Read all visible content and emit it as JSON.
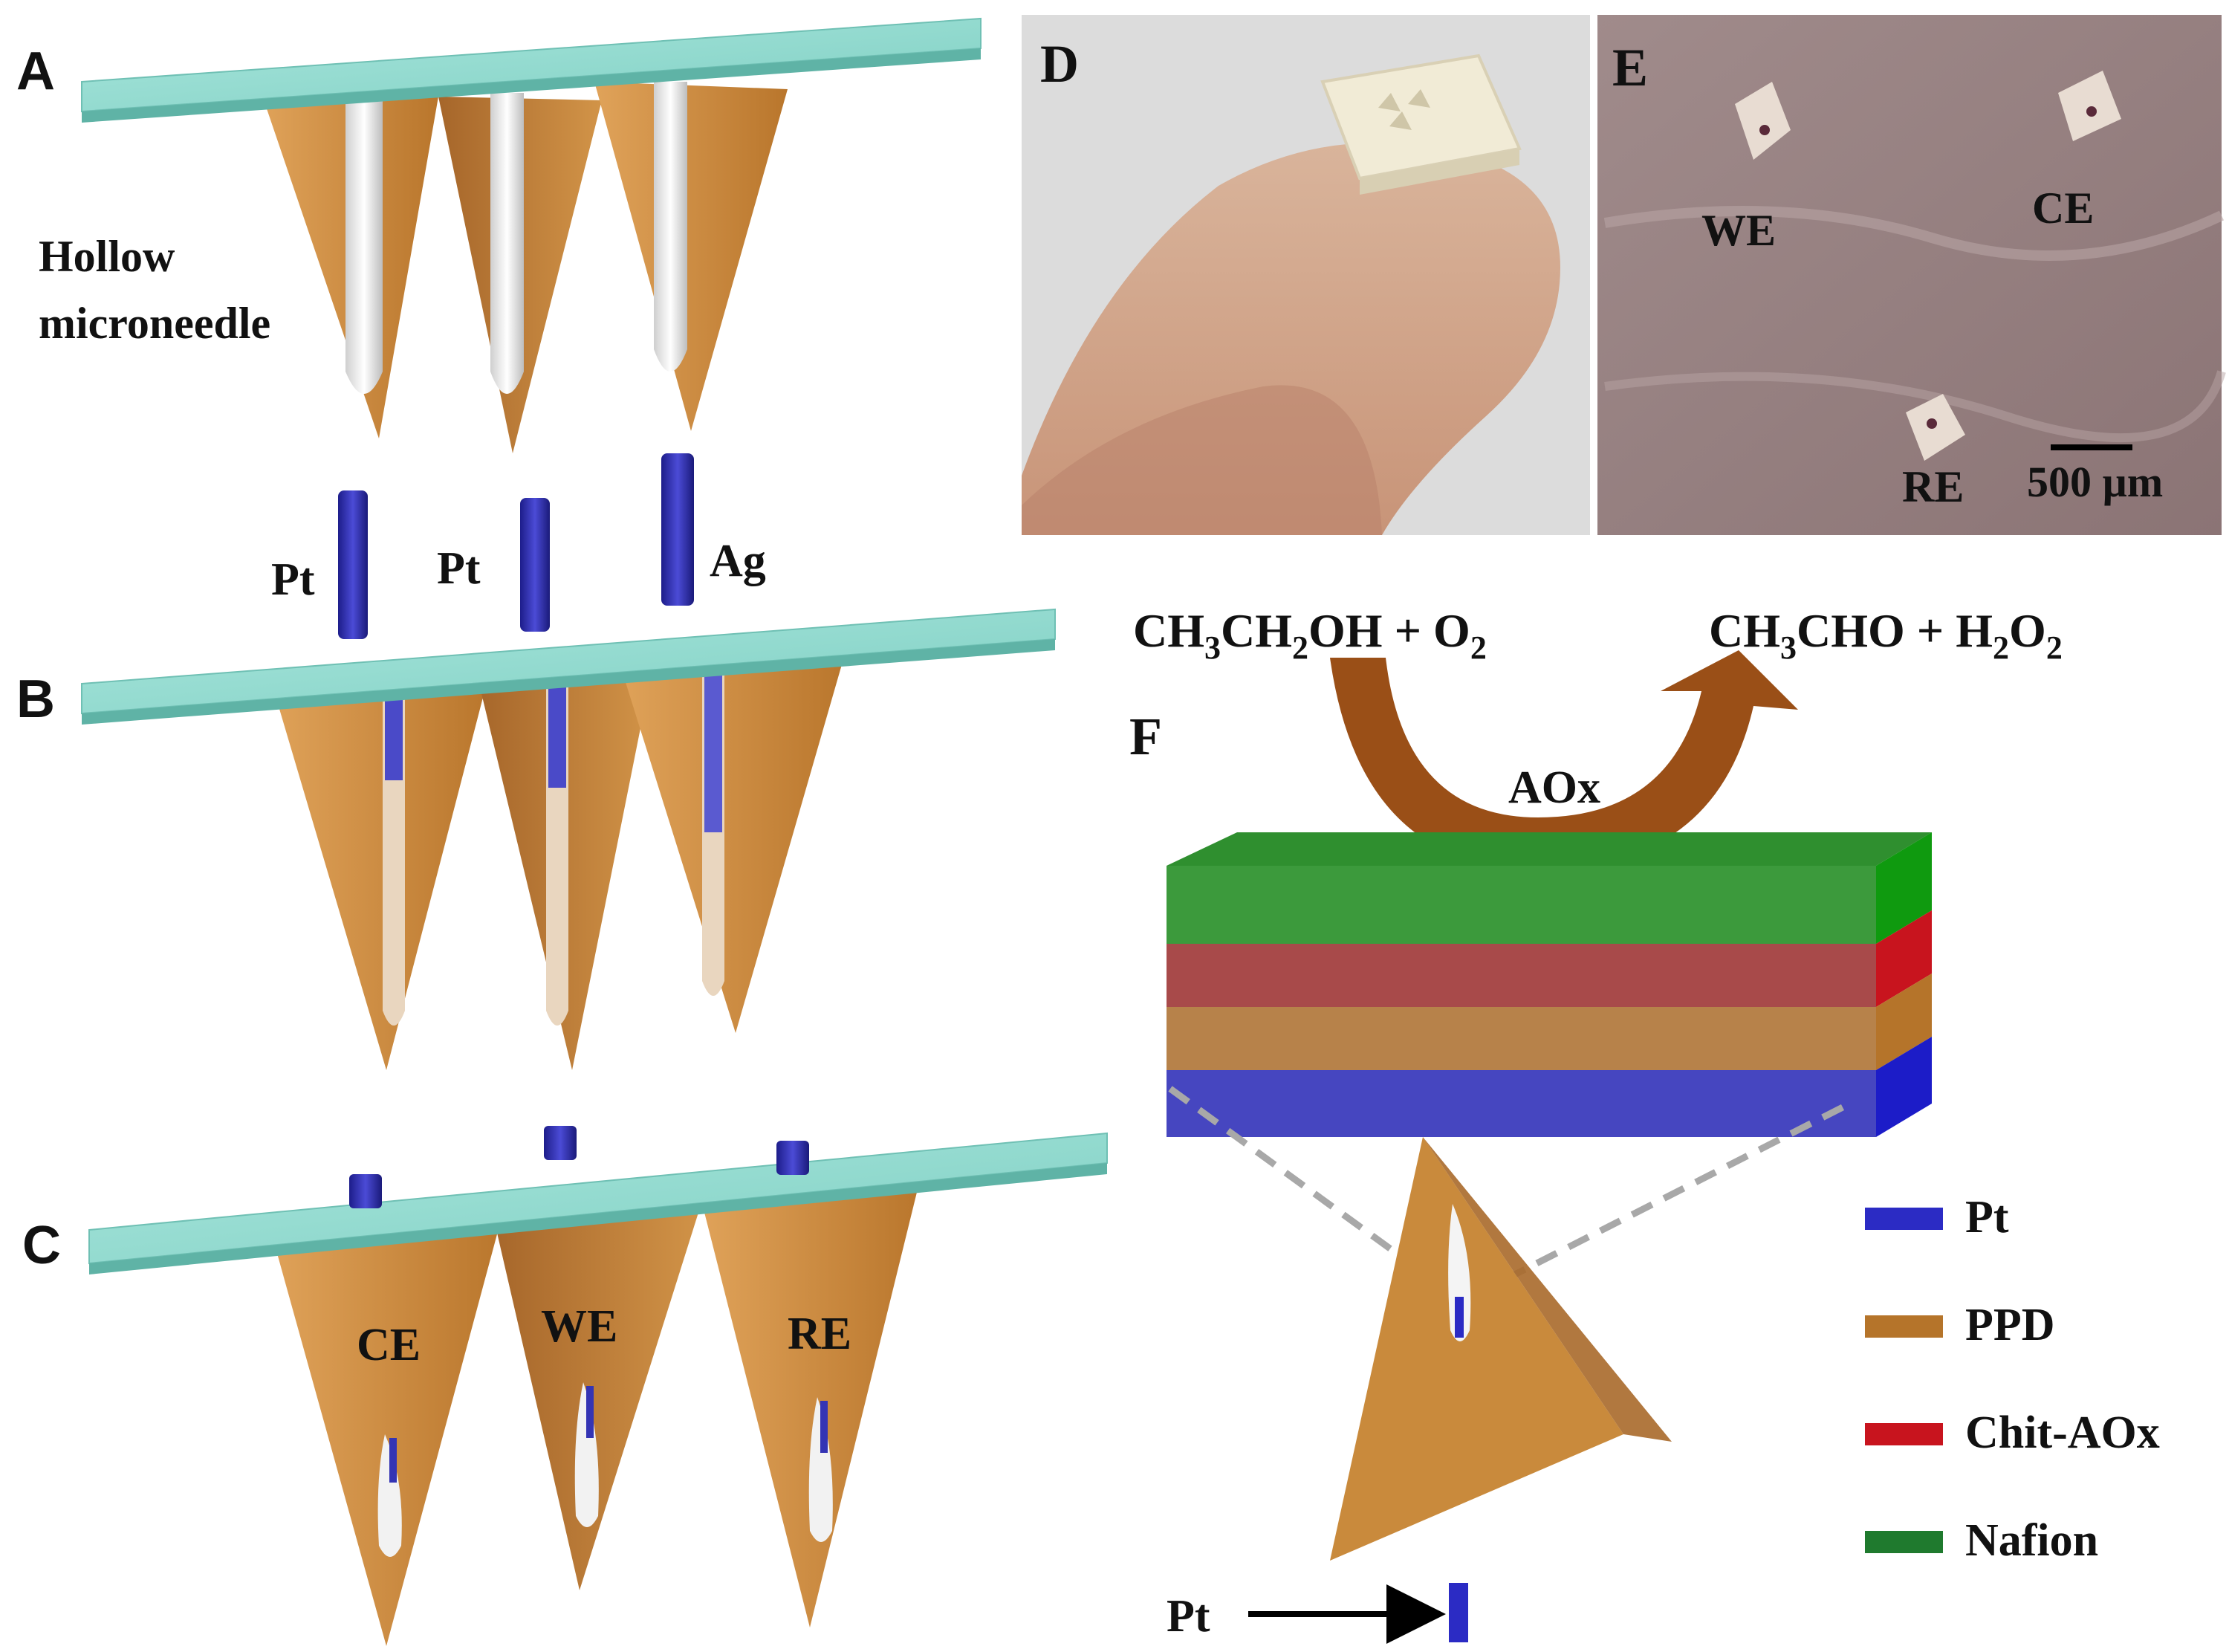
{
  "panels": {
    "A": {
      "letter": "A",
      "label_line1": "Hollow",
      "label_line2": "microneedle"
    },
    "B": {
      "letter": "B",
      "wires": [
        "Pt",
        "Pt",
        "Ag"
      ]
    },
    "C": {
      "letter": "C",
      "electrodes": [
        "CE",
        "WE",
        "RE"
      ]
    },
    "D": {
      "letter": "D"
    },
    "E": {
      "letter": "E",
      "we": "WE",
      "ce": "CE",
      "re": "RE",
      "scale_bar": "500 µm"
    },
    "F": {
      "letter": "F",
      "enzyme": "AOx",
      "pt_pointer": "Pt"
    }
  },
  "reaction": {
    "reactants": [
      "CH3CH2OH",
      "O2"
    ],
    "products": [
      "CH3CHO",
      "H2O2"
    ]
  },
  "legend": [
    {
      "label": "Pt",
      "color": "#2b2bc4"
    },
    {
      "label": "PPD",
      "color": "#b5742a"
    },
    {
      "label": "Chit-AOx",
      "color": "#c8141e"
    },
    {
      "label": "Nafion",
      "color": "#1f7a2e"
    }
  ],
  "colors": {
    "plate": "#8fd8cf",
    "needle": "#c98a3c",
    "layer_nafion": "#3c9a3c",
    "layer_chit": "#a84a4a",
    "layer_ppd": "#b7824a",
    "layer_pt": "#4646c0",
    "arrow": "#9a4f17"
  }
}
